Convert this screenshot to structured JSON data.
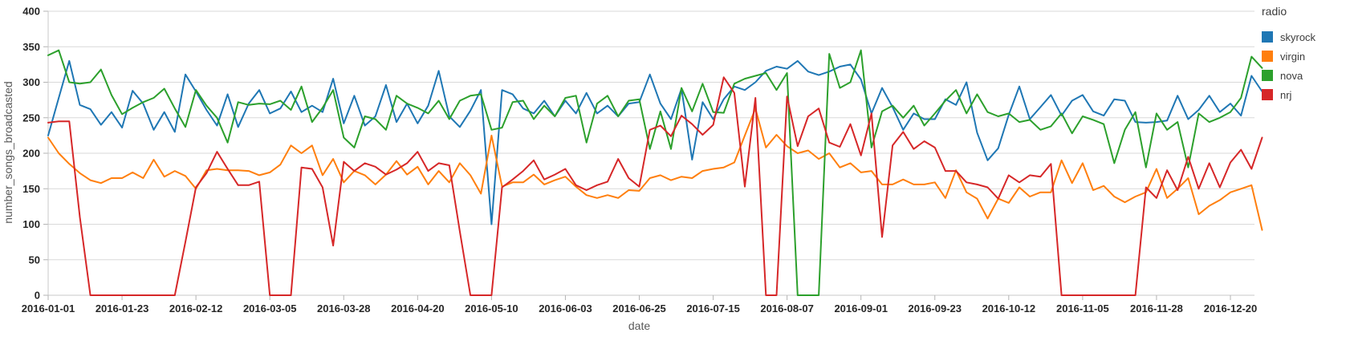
{
  "chart_data": {
    "type": "line",
    "title": "",
    "xlabel": "date",
    "ylabel": "number_songs_broadcasted",
    "legend_title": "radio",
    "legend_position": "right",
    "grid": "horizontal",
    "ylim": [
      0,
      400
    ],
    "ytick_step": 50,
    "ytick_labels": [
      "0",
      "50",
      "100",
      "150",
      "200",
      "250",
      "300",
      "350",
      "400"
    ],
    "n_points": 116,
    "x_unit": "date (one point every ~3 days, index 0..115)",
    "x_tick_indices": [
      0,
      7,
      14,
      21,
      28,
      35,
      42,
      49,
      56,
      63,
      70,
      77,
      84,
      91,
      98,
      105,
      112
    ],
    "x_tick_labels": [
      "2016-01-01",
      "2016-01-23",
      "2016-02-12",
      "2016-03-05",
      "2016-03-28",
      "2016-04-20",
      "2016-05-10",
      "2016-06-03",
      "2016-06-25",
      "2016-07-15",
      "2016-08-07",
      "2016-09-01",
      "2016-09-23",
      "2016-10-12",
      "2016-11-05",
      "2016-11-28",
      "2016-12-20"
    ],
    "series": [
      {
        "name": "skyrock",
        "color": "#1f77b4",
        "values": [
          225,
          278,
          330,
          268,
          262,
          240,
          258,
          236,
          288,
          270,
          233,
          258,
          230,
          311,
          287,
          261,
          239,
          283,
          237,
          270,
          289,
          256,
          263,
          287,
          258,
          267,
          258,
          305,
          242,
          281,
          239,
          252,
          296,
          244,
          270,
          242,
          267,
          316,
          252,
          237,
          260,
          289,
          100,
          289,
          283,
          263,
          256,
          274,
          252,
          274,
          256,
          285,
          256,
          267,
          252,
          270,
          272,
          311,
          270,
          248,
          291,
          191,
          272,
          248,
          276,
          294,
          289,
          300,
          316,
          322,
          319,
          330,
          315,
          310,
          315,
          322,
          325,
          304,
          256,
          292,
          265,
          233,
          256,
          248,
          248,
          276,
          268,
          300,
          229,
          190,
          207,
          254,
          294,
          248,
          265,
          282,
          253,
          274,
          282,
          259,
          253,
          276,
          274,
          244,
          243,
          244,
          246,
          281,
          248,
          261,
          281,
          258,
          270,
          253,
          309,
          287
        ]
      },
      {
        "name": "virgin",
        "color": "#ff7f0e",
        "values": [
          222,
          200,
          185,
          172,
          162,
          158,
          165,
          165,
          173,
          165,
          191,
          167,
          175,
          168,
          150,
          176,
          178,
          176,
          176,
          175,
          169,
          173,
          184,
          211,
          200,
          211,
          169,
          192,
          159,
          175,
          169,
          156,
          170,
          189,
          170,
          181,
          156,
          175,
          159,
          186,
          169,
          143,
          225,
          153,
          159,
          159,
          170,
          156,
          162,
          167,
          153,
          141,
          137,
          141,
          137,
          148,
          147,
          165,
          169,
          162,
          167,
          165,
          175,
          178,
          180,
          187,
          225,
          263,
          208,
          226,
          210,
          200,
          204,
          192,
          200,
          180,
          186,
          173,
          175,
          156,
          156,
          163,
          156,
          156,
          159,
          137,
          176,
          145,
          136,
          108,
          136,
          130,
          152,
          139,
          145,
          145,
          190,
          158,
          186,
          148,
          154,
          139,
          131,
          139,
          145,
          178,
          137,
          150,
          165,
          114,
          126,
          134,
          145,
          150,
          155,
          92
        ]
      },
      {
        "name": "nova",
        "color": "#2ca02c",
        "values": [
          338,
          345,
          300,
          298,
          300,
          318,
          282,
          255,
          264,
          272,
          278,
          291,
          263,
          237,
          289,
          267,
          250,
          215,
          272,
          268,
          270,
          269,
          274,
          261,
          294,
          244,
          264,
          289,
          222,
          208,
          252,
          248,
          233,
          281,
          270,
          264,
          256,
          274,
          248,
          274,
          281,
          283,
          233,
          236,
          272,
          274,
          248,
          267,
          252,
          278,
          281,
          215,
          270,
          281,
          252,
          274,
          276,
          206,
          259,
          206,
          292,
          259,
          298,
          258,
          257,
          298,
          305,
          309,
          313,
          289,
          313,
          0,
          0,
          0,
          340,
          292,
          300,
          345,
          208,
          259,
          267,
          250,
          267,
          239,
          256,
          274,
          289,
          256,
          283,
          258,
          252,
          256,
          244,
          247,
          233,
          238,
          256,
          228,
          252,
          247,
          241,
          186,
          233,
          258,
          180,
          256,
          233,
          244,
          180,
          256,
          244,
          250,
          258,
          278,
          336,
          320
        ]
      },
      {
        "name": "nrj",
        "color": "#d62728",
        "values": [
          243,
          245,
          245,
          110,
          0,
          0,
          0,
          0,
          0,
          0,
          0,
          0,
          0,
          75,
          152,
          172,
          202,
          178,
          155,
          155,
          160,
          0,
          0,
          0,
          180,
          178,
          152,
          70,
          188,
          175,
          186,
          181,
          170,
          177,
          186,
          202,
          175,
          186,
          183,
          90,
          0,
          0,
          0,
          152,
          163,
          175,
          190,
          163,
          170,
          178,
          155,
          148,
          155,
          160,
          192,
          165,
          153,
          233,
          239,
          224,
          253,
          241,
          226,
          240,
          307,
          285,
          153,
          278,
          0,
          0,
          280,
          210,
          252,
          263,
          215,
          209,
          241,
          197,
          256,
          82,
          211,
          230,
          206,
          217,
          208,
          175,
          175,
          159,
          156,
          152,
          136,
          169,
          159,
          169,
          167,
          185,
          0,
          0,
          0,
          0,
          0,
          0,
          0,
          0,
          152,
          137,
          176,
          148,
          195,
          150,
          186,
          152,
          187,
          205,
          178,
          222
        ]
      }
    ],
    "style": {
      "grid_color": "#d9d9d9",
      "axis_color": "#c9c9c9",
      "tick_mark_color": "#b3b3b3",
      "tick_label_color": "#262626",
      "axis_title_color": "#595959",
      "line_width": 2
    }
  }
}
